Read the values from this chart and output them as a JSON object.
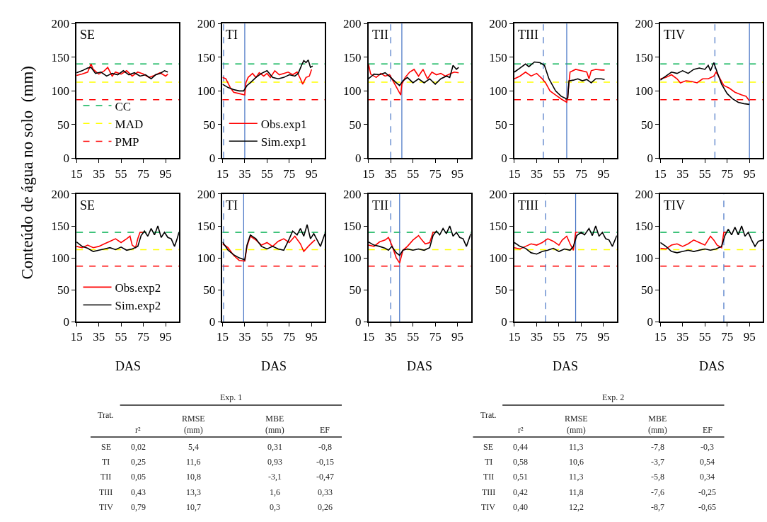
{
  "chart_data": [
    {
      "type": "line",
      "title": "SE",
      "ylabel": "Conteúdo de água no solo  (mm)",
      "xlim": [
        15,
        107
      ],
      "xticks": [
        15,
        35,
        55,
        75,
        95
      ],
      "ylim": [
        0,
        200
      ],
      "yticks": [
        0,
        50,
        100,
        150,
        200
      ],
      "legend": "bottom left",
      "ref_lines": [
        {
          "axis": "y",
          "value": 140,
          "label": "CC",
          "color": "#00b050",
          "line_style": "dashed"
        },
        {
          "axis": "y",
          "value": 113,
          "label": "MAD",
          "color": "#ffff00",
          "line_style": "dashed"
        },
        {
          "axis": "y",
          "value": 87,
          "label": "PMP",
          "color": "#ff0000",
          "line_style": "dashed"
        }
      ],
      "series": [
        {
          "color": "#ff0000",
          "x": [
            15,
            20,
            25,
            28,
            30,
            35,
            40,
            43,
            47,
            50,
            55,
            60,
            65,
            70,
            75,
            80,
            85,
            90,
            95,
            97
          ],
          "values": [
            123,
            125,
            128,
            140,
            132,
            125,
            130,
            135,
            122,
            128,
            125,
            130,
            122,
            128,
            125,
            120,
            123,
            127,
            122,
            125
          ]
        },
        {
          "color": "#000000",
          "x": [
            15,
            20,
            25,
            28,
            32,
            37,
            42,
            47,
            52,
            57,
            62,
            67,
            72,
            77,
            82,
            86,
            90,
            94,
            97
          ],
          "values": [
            127,
            130,
            134,
            135,
            126,
            128,
            122,
            126,
            124,
            130,
            124,
            127,
            122,
            124,
            118,
            124,
            126,
            130,
            128
          ]
        }
      ]
    },
    {
      "type": "line",
      "title": "TI",
      "xlim": [
        15,
        107
      ],
      "xticks": [
        15,
        35,
        55,
        75,
        95
      ],
      "ylim": [
        0,
        200
      ],
      "yticks": [
        0,
        50,
        100,
        150,
        200
      ],
      "legend": "bottom left",
      "ref_lines": [
        {
          "axis": "y",
          "value": 140,
          "color": "#00b050",
          "line_style": "dashed"
        },
        {
          "axis": "y",
          "value": 113,
          "color": "#ffff00",
          "line_style": "dashed"
        },
        {
          "axis": "y",
          "value": 87,
          "color": "#ff0000",
          "line_style": "dashed"
        },
        {
          "axis": "x",
          "value": 16,
          "color": "#4472c4",
          "line_style": "dashed"
        },
        {
          "axis": "x",
          "value": 35,
          "color": "#4472c4",
          "line_style": "solid"
        }
      ],
      "series": [
        {
          "name": "Obs.exp1",
          "color": "#ff0000",
          "x": [
            15,
            18,
            22,
            25,
            30,
            35,
            36,
            38,
            42,
            45,
            48,
            52,
            55,
            58,
            62,
            66,
            70,
            74,
            78,
            82,
            85,
            87,
            90,
            93,
            95
          ],
          "values": [
            120,
            118,
            105,
            98,
            96,
            94,
            112,
            120,
            126,
            120,
            127,
            122,
            126,
            120,
            130,
            124,
            126,
            128,
            124,
            128,
            118,
            110,
            120,
            122,
            132
          ]
        },
        {
          "name": "Sim.exp1",
          "color": "#000000",
          "x": [
            15,
            20,
            25,
            30,
            34,
            37,
            40,
            45,
            50,
            55,
            60,
            65,
            70,
            75,
            80,
            83,
            86,
            88,
            90,
            92,
            94,
            96
          ],
          "values": [
            110,
            105,
            102,
            100,
            100,
            108,
            112,
            120,
            126,
            130,
            120,
            118,
            120,
            124,
            122,
            126,
            138,
            145,
            142,
            146,
            135,
            137
          ]
        }
      ]
    },
    {
      "type": "line",
      "title": "TII",
      "xlim": [
        15,
        107
      ],
      "xticks": [
        15,
        35,
        55,
        75,
        95
      ],
      "ylim": [
        0,
        200
      ],
      "yticks": [
        0,
        50,
        100,
        150,
        200
      ],
      "ref_lines": [
        {
          "axis": "y",
          "value": 140,
          "color": "#00b050",
          "line_style": "dashed"
        },
        {
          "axis": "y",
          "value": 113,
          "color": "#ffff00",
          "line_style": "dashed"
        },
        {
          "axis": "y",
          "value": 87,
          "color": "#ff0000",
          "line_style": "dashed"
        },
        {
          "axis": "x",
          "value": 35,
          "color": "#4472c4",
          "line_style": "dashed"
        },
        {
          "axis": "x",
          "value": 45,
          "color": "#4472c4",
          "line_style": "solid"
        }
      ],
      "series": [
        {
          "color": "#ff0000",
          "x": [
            15,
            17,
            22,
            26,
            30,
            34,
            38,
            42,
            44,
            45,
            48,
            52,
            56,
            60,
            64,
            68,
            72,
            76,
            80,
            84,
            88,
            92,
            96
          ],
          "values": [
            140,
            125,
            120,
            126,
            122,
            124,
            112,
            100,
            94,
            110,
            120,
            128,
            132,
            122,
            132,
            118,
            128,
            124,
            126,
            122,
            125,
            128,
            127
          ]
        },
        {
          "color": "#000000",
          "x": [
            15,
            20,
            25,
            30,
            35,
            40,
            43,
            46,
            50,
            55,
            60,
            65,
            70,
            75,
            80,
            85,
            88,
            91,
            94,
            96
          ],
          "values": [
            118,
            125,
            124,
            127,
            120,
            112,
            108,
            115,
            120,
            112,
            118,
            112,
            118,
            110,
            118,
            122,
            120,
            138,
            132,
            135
          ]
        }
      ]
    },
    {
      "type": "line",
      "title": "TIII",
      "xlim": [
        15,
        107
      ],
      "xticks": [
        15,
        35,
        55,
        75,
        95
      ],
      "ylim": [
        0,
        200
      ],
      "yticks": [
        0,
        50,
        100,
        150,
        200
      ],
      "ref_lines": [
        {
          "axis": "y",
          "value": 140,
          "color": "#00b050",
          "line_style": "dashed"
        },
        {
          "axis": "y",
          "value": 113,
          "color": "#ffff00",
          "line_style": "dashed"
        },
        {
          "axis": "y",
          "value": 87,
          "color": "#ff0000",
          "line_style": "dashed"
        },
        {
          "axis": "x",
          "value": 41,
          "color": "#4472c4",
          "line_style": "dashed"
        },
        {
          "axis": "x",
          "value": 62,
          "color": "#4472c4",
          "line_style": "solid"
        }
      ],
      "series": [
        {
          "color": "#ff0000",
          "x": [
            15,
            20,
            25,
            30,
            35,
            40,
            43,
            47,
            52,
            57,
            62,
            63,
            65,
            70,
            75,
            80,
            82,
            84,
            88,
            93,
            96
          ],
          "values": [
            118,
            122,
            128,
            122,
            126,
            118,
            112,
            100,
            94,
            88,
            83,
            95,
            128,
            132,
            130,
            128,
            118,
            130,
            132,
            131,
            131
          ]
        },
        {
          "color": "#000000",
          "x": [
            15,
            20,
            25,
            28,
            33,
            38,
            42,
            46,
            52,
            57,
            62,
            63,
            64,
            68,
            72,
            76,
            80,
            84,
            88,
            93,
            96
          ],
          "values": [
            128,
            134,
            140,
            136,
            143,
            142,
            138,
            118,
            100,
            92,
            88,
            90,
            115,
            116,
            118,
            115,
            117,
            112,
            118,
            118,
            117
          ]
        }
      ]
    },
    {
      "type": "line",
      "title": "TIV",
      "xlim": [
        15,
        107
      ],
      "xticks": [
        15,
        35,
        55,
        75,
        95
      ],
      "ylim": [
        0,
        200
      ],
      "yticks": [
        0,
        50,
        100,
        150,
        200
      ],
      "ref_lines": [
        {
          "axis": "y",
          "value": 140,
          "color": "#00b050",
          "line_style": "dashed"
        },
        {
          "axis": "y",
          "value": 113,
          "color": "#ffff00",
          "line_style": "dashed"
        },
        {
          "axis": "y",
          "value": 87,
          "color": "#ff0000",
          "line_style": "dashed"
        },
        {
          "axis": "x",
          "value": 64,
          "color": "#4472c4",
          "line_style": "dashed"
        },
        {
          "axis": "x",
          "value": 95,
          "color": "#4472c4",
          "line_style": "solid"
        }
      ],
      "series": [
        {
          "color": "#ff0000",
          "x": [
            15,
            20,
            25,
            30,
            33,
            38,
            43,
            48,
            53,
            58,
            63,
            65,
            68,
            72,
            77,
            82,
            88,
            92,
            95
          ],
          "values": [
            118,
            120,
            124,
            118,
            112,
            115,
            114,
            112,
            118,
            118,
            122,
            128,
            120,
            108,
            104,
            98,
            94,
            92,
            85
          ]
        },
        {
          "color": "#000000",
          "x": [
            15,
            20,
            25,
            30,
            35,
            40,
            45,
            50,
            55,
            58,
            60,
            63,
            66,
            70,
            75,
            80,
            85,
            90,
            95
          ],
          "values": [
            116,
            122,
            128,
            126,
            130,
            126,
            132,
            134,
            132,
            138,
            130,
            142,
            128,
            110,
            96,
            88,
            83,
            81,
            80
          ]
        }
      ]
    },
    {
      "type": "line",
      "title": "SE",
      "xlabel": "DAS",
      "xlim": [
        15,
        107
      ],
      "xticks": [
        15,
        35,
        55,
        75,
        95
      ],
      "ylim": [
        0,
        200
      ],
      "yticks": [
        0,
        50,
        100,
        150,
        200
      ],
      "legend": "bottom left",
      "ref_lines": [
        {
          "axis": "y",
          "value": 140,
          "color": "#00b050",
          "line_style": "dashed"
        },
        {
          "axis": "y",
          "value": 113,
          "color": "#ffff00",
          "line_style": "dashed"
        },
        {
          "axis": "y",
          "value": 87,
          "color": "#ff0000",
          "line_style": "dashed"
        }
      ],
      "series": [
        {
          "name": "Obs.exp2",
          "color": "#ff0000",
          "x": [
            15,
            20,
            25,
            30,
            35,
            40,
            45,
            50,
            55,
            60,
            63,
            65,
            68,
            70,
            72,
            75
          ],
          "values": [
            118,
            116,
            120,
            116,
            118,
            122,
            126,
            130,
            124,
            130,
            134,
            120,
            116,
            130,
            140,
            140
          ]
        },
        {
          "name": "Sim.exp2",
          "color": "#000000",
          "x": [
            15,
            20,
            25,
            30,
            35,
            40,
            45,
            50,
            55,
            60,
            65,
            70,
            73,
            76,
            79,
            82,
            85,
            88,
            91,
            94,
            97,
            100,
            103,
            105,
            107
          ],
          "values": [
            125,
            118,
            115,
            110,
            112,
            114,
            116,
            113,
            117,
            112,
            114,
            118,
            135,
            142,
            134,
            146,
            136,
            150,
            132,
            140,
            132,
            130,
            118,
            128,
            140
          ]
        }
      ]
    },
    {
      "type": "line",
      "title": "TI",
      "xlabel": "DAS",
      "xlim": [
        15,
        107
      ],
      "xticks": [
        15,
        35,
        55,
        75,
        95
      ],
      "ylim": [
        0,
        200
      ],
      "yticks": [
        0,
        50,
        100,
        150,
        200
      ],
      "ref_lines": [
        {
          "axis": "y",
          "value": 140,
          "color": "#00b050",
          "line_style": "dashed"
        },
        {
          "axis": "y",
          "value": 113,
          "color": "#ffff00",
          "line_style": "dashed"
        },
        {
          "axis": "y",
          "value": 87,
          "color": "#ff0000",
          "line_style": "dashed"
        },
        {
          "axis": "x",
          "value": 16,
          "color": "#4472c4",
          "line_style": "dashed"
        },
        {
          "axis": "x",
          "value": 34,
          "color": "#4472c4",
          "line_style": "solid"
        }
      ],
      "series": [
        {
          "color": "#ff0000",
          "x": [
            15,
            20,
            25,
            30,
            35,
            37,
            40,
            45,
            50,
            55,
            60,
            65,
            70,
            75,
            80,
            85,
            88,
            92,
            96,
            98
          ],
          "values": [
            122,
            116,
            104,
            96,
            95,
            118,
            134,
            128,
            120,
            124,
            118,
            126,
            130,
            124,
            134,
            122,
            110,
            118,
            125,
            128
          ]
        },
        {
          "color": "#000000",
          "x": [
            15,
            20,
            25,
            30,
            35,
            37,
            40,
            45,
            50,
            55,
            60,
            65,
            70,
            75,
            78,
            82,
            85,
            88,
            91,
            94,
            97,
            100,
            103,
            107
          ],
          "values": [
            125,
            112,
            105,
            100,
            97,
            120,
            136,
            130,
            118,
            114,
            118,
            114,
            112,
            130,
            142,
            136,
            146,
            134,
            152,
            130,
            138,
            128,
            118,
            138
          ]
        }
      ]
    },
    {
      "type": "line",
      "title": "TII",
      "xlabel": "DAS",
      "xlim": [
        15,
        107
      ],
      "xticks": [
        15,
        35,
        55,
        75,
        95
      ],
      "ylim": [
        0,
        200
      ],
      "yticks": [
        0,
        50,
        100,
        150,
        200
      ],
      "ref_lines": [
        {
          "axis": "y",
          "value": 140,
          "color": "#00b050",
          "line_style": "dashed"
        },
        {
          "axis": "y",
          "value": 113,
          "color": "#ffff00",
          "line_style": "dashed"
        },
        {
          "axis": "y",
          "value": 87,
          "color": "#ff0000",
          "line_style": "dashed"
        },
        {
          "axis": "x",
          "value": 35,
          "color": "#4472c4",
          "line_style": "dashed"
        },
        {
          "axis": "x",
          "value": 43,
          "color": "#4472c4",
          "line_style": "solid"
        }
      ],
      "series": [
        {
          "color": "#ff0000",
          "x": [
            15,
            20,
            25,
            30,
            33,
            36,
            40,
            43,
            46,
            50,
            55,
            60,
            63,
            66,
            70,
            73,
            75
          ],
          "values": [
            120,
            118,
            125,
            128,
            132,
            120,
            100,
            92,
            112,
            118,
            128,
            135,
            128,
            122,
            124,
            140,
            140
          ]
        },
        {
          "color": "#000000",
          "x": [
            15,
            20,
            25,
            30,
            33,
            36,
            40,
            43,
            46,
            50,
            55,
            60,
            65,
            70,
            73,
            76,
            79,
            82,
            85,
            88,
            91,
            94,
            97,
            100,
            103,
            107
          ],
          "values": [
            125,
            120,
            118,
            115,
            112,
            118,
            108,
            104,
            112,
            114,
            112,
            114,
            112,
            116,
            135,
            142,
            136,
            146,
            138,
            150,
            134,
            140,
            132,
            130,
            118,
            138
          ]
        }
      ]
    },
    {
      "type": "line",
      "title": "TIII",
      "xlabel": "DAS",
      "xlim": [
        15,
        107
      ],
      "xticks": [
        15,
        35,
        55,
        75,
        95
      ],
      "ylim": [
        0,
        200
      ],
      "yticks": [
        0,
        50,
        100,
        150,
        200
      ],
      "ref_lines": [
        {
          "axis": "y",
          "value": 140,
          "color": "#00b050",
          "line_style": "dashed"
        },
        {
          "axis": "y",
          "value": 113,
          "color": "#ffff00",
          "line_style": "dashed"
        },
        {
          "axis": "y",
          "value": 87,
          "color": "#ff0000",
          "line_style": "dashed"
        },
        {
          "axis": "x",
          "value": 43,
          "color": "#4472c4",
          "line_style": "dashed"
        },
        {
          "axis": "x",
          "value": 70,
          "color": "#4472c4",
          "line_style": "solid"
        }
      ],
      "series": [
        {
          "color": "#ff0000",
          "x": [
            15,
            20,
            25,
            30,
            35,
            40,
            45,
            50,
            55,
            58,
            62,
            65,
            68,
            70,
            72
          ],
          "values": [
            116,
            114,
            118,
            122,
            120,
            124,
            130,
            126,
            120,
            128,
            134,
            122,
            112,
            140,
            140
          ]
        },
        {
          "color": "#000000",
          "x": [
            15,
            20,
            25,
            30,
            35,
            40,
            45,
            50,
            55,
            60,
            65,
            68,
            71,
            75,
            78,
            82,
            85,
            88,
            91,
            94,
            97,
            100,
            103,
            107
          ],
          "values": [
            124,
            118,
            115,
            108,
            106,
            110,
            112,
            115,
            110,
            114,
            112,
            118,
            135,
            140,
            136,
            146,
            135,
            150,
            134,
            140,
            130,
            128,
            118,
            135
          ]
        }
      ]
    },
    {
      "type": "line",
      "title": "TIV",
      "xlabel": "DAS",
      "xlim": [
        15,
        107
      ],
      "xticks": [
        15,
        35,
        55,
        75,
        95
      ],
      "ylim": [
        0,
        200
      ],
      "yticks": [
        0,
        50,
        100,
        150,
        200
      ],
      "ref_lines": [
        {
          "axis": "y",
          "value": 140,
          "color": "#00b050",
          "line_style": "dashed"
        },
        {
          "axis": "y",
          "value": 113,
          "color": "#ffff00",
          "line_style": "dashed"
        },
        {
          "axis": "y",
          "value": 87,
          "color": "#ff0000",
          "line_style": "dashed"
        },
        {
          "axis": "x",
          "value": 72,
          "color": "#4472c4",
          "line_style": "dashed"
        }
      ],
      "series": [
        {
          "color": "#ff0000",
          "x": [
            15,
            20,
            25,
            30,
            35,
            40,
            45,
            50,
            55,
            60,
            63,
            66,
            70,
            72,
            74
          ],
          "values": [
            115,
            114,
            120,
            122,
            118,
            122,
            128,
            124,
            120,
            134,
            128,
            120,
            116,
            140,
            140
          ]
        },
        {
          "color": "#000000",
          "x": [
            15,
            20,
            25,
            30,
            35,
            40,
            45,
            50,
            55,
            60,
            65,
            70,
            73,
            76,
            79,
            82,
            85,
            88,
            91,
            94,
            97,
            100,
            103,
            107
          ],
          "values": [
            124,
            118,
            110,
            108,
            110,
            112,
            110,
            112,
            114,
            112,
            114,
            118,
            135,
            145,
            136,
            148,
            136,
            150,
            134,
            140,
            128,
            118,
            126,
            128
          ]
        }
      ]
    },
    {
      "type": "other",
      "title": "Exp. 1",
      "annotations": [
        "Trat.",
        "r²",
        "RMSE\n(mm)",
        "MBE\n(mm)",
        "EF",
        "SE",
        "0,02",
        "5,4",
        "0,31",
        "-0,8",
        "TI",
        "0,25",
        "11,6",
        "0,93",
        "-0,15",
        "TII",
        "0,05",
        "10,8",
        "-3,1",
        "-0,47",
        "TIII",
        "0,43",
        "13,3",
        "1,6",
        "0,33",
        "TIV",
        "0,79",
        "10,7",
        "0,3",
        "0,26"
      ]
    },
    {
      "type": "other",
      "title": "Exp. 2",
      "annotations": [
        "Trat.",
        "r²",
        "RMSE\n(mm)",
        "MBE\n(mm)",
        "EF",
        "SE",
        "0,44",
        "11,3",
        "-7,8",
        "-0,3",
        "TI",
        "0,58",
        "10,6",
        "-3,7",
        "0,54",
        "TII",
        "0,51",
        "11,3",
        "-5,8",
        "0,34",
        "TIII",
        "0,42",
        "11,8",
        "-7,6",
        "-0,25",
        "TIV",
        "0,40",
        "12,2",
        "-8,7",
        "-0,65"
      ]
    }
  ]
}
